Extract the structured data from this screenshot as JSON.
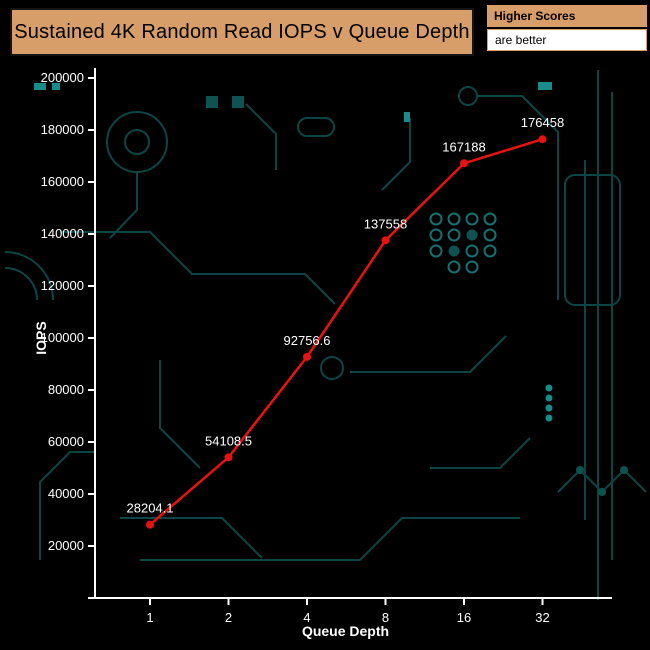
{
  "header": {
    "title": "Sustained 4K Random Read IOPS v Queue Depth",
    "note_top": "Higher Scores",
    "note_bottom": "are better"
  },
  "colors": {
    "background": "#000000",
    "accent_tan": "#d79e6a",
    "line_red": "#e81212",
    "axis": "#ffffff",
    "circuit_teal": "#0d4545",
    "circuit_bright": "#1a8b8b"
  },
  "chart_data": {
    "type": "line",
    "title": "Sustained 4K Random Read IOPS v Queue Depth",
    "categories": [
      "1",
      "2",
      "4",
      "8",
      "16",
      "32"
    ],
    "series": [
      {
        "name": "Sustained 4K Random Read IOPS",
        "color": "#e81212",
        "values": [
          28204.1,
          54108.5,
          92756.6,
          137558,
          167188,
          176458
        ],
        "labels": [
          "28204.1",
          "54108.5",
          "92756.6",
          "137558",
          "167188",
          "176458"
        ]
      }
    ],
    "xlabel": "Queue Depth",
    "ylabel": "IOPS",
    "ylim": [
      0,
      200000
    ],
    "ytick_step": 20000,
    "grid": false,
    "legend": "none"
  }
}
